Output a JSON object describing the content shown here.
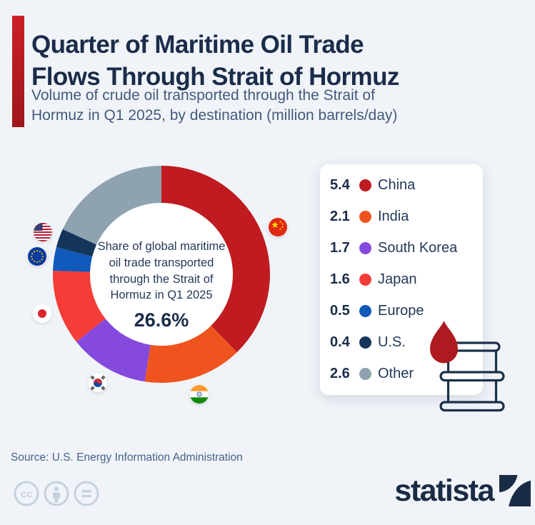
{
  "page": {
    "background": "#f0f4f9"
  },
  "header": {
    "title": "Quarter of Maritime Oil Trade\nFlows Through Strait of Hormuz",
    "subtitle": "Volume of crude oil transported through the Strait of\nHormuz in Q1 2025, by destination (million barrels/day)",
    "accent_top_color": "#cb2127",
    "accent_bottom_color": "#9d161b"
  },
  "chart_data": {
    "type": "pie",
    "subtype": "donut",
    "title": "Volume of crude oil transported through the Strait of Hormuz in Q1 2025, by destination",
    "unit": "million barrels/day",
    "categories": [
      "China",
      "India",
      "South Korea",
      "Japan",
      "Europe",
      "U.S.",
      "Other"
    ],
    "values": [
      5.4,
      2.1,
      1.7,
      1.6,
      0.5,
      0.4,
      2.6
    ],
    "colors": [
      "#bf1b20",
      "#f0541e",
      "#8549dd",
      "#f43d38",
      "#1159bb",
      "#14365b",
      "#8ea3af"
    ],
    "flag_icons": [
      "china-flag-icon",
      "india-flag-icon",
      "south-korea-flag-icon",
      "japan-flag-icon",
      "eu-flag-icon",
      "us-flag-icon",
      null
    ],
    "start_angle_deg": 0,
    "clockwise": true,
    "center": {
      "note": "Share of global maritime\noil trade transported\nthrough the Strait of\nHormuz in Q1 2025",
      "value": "26.6%"
    },
    "legend_position": "right"
  },
  "footer": {
    "source": "Source: U.S. Energy Information Administration",
    "license_icons": [
      "cc-icon",
      "attribution-icon",
      "equals-icon"
    ],
    "brand": "statista"
  }
}
